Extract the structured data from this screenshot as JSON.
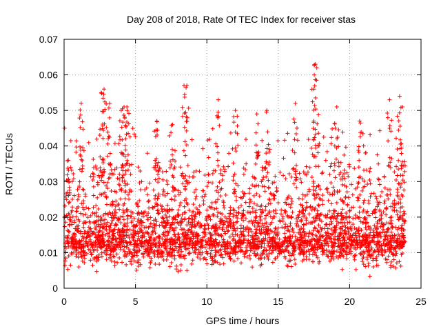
{
  "chart_data": {
    "type": "scatter",
    "title": "Day 208 of 2018, Rate Of TEC Index for receiver stas",
    "xlabel": "GPS time / hours",
    "ylabel": "ROTI / TECUs",
    "xlim": [
      0,
      25
    ],
    "ylim": [
      0,
      0.07
    ],
    "xticks": [
      0,
      5,
      10,
      15,
      20,
      25
    ],
    "xtick_labels": [
      "0",
      "5",
      "10",
      "15",
      "20",
      "25"
    ],
    "yticks": [
      0,
      0.01,
      0.02,
      0.03,
      0.04,
      0.05,
      0.06,
      0.07
    ],
    "ytick_labels": [
      "0",
      "0.01",
      "0.02",
      "0.03",
      "0.04",
      "0.05",
      "0.06",
      "0.07"
    ],
    "grid": true,
    "marker": "+",
    "color": "#ff0000",
    "series": [
      {
        "name": "ROTI",
        "description_values": "dense red + markers across 0-24 h; bulk of points between 0.005 and 0.03, notable peaks",
        "x": [
          0.3,
          1.2,
          2.6,
          2.8,
          3.2,
          4.0,
          4.2,
          4.4,
          6.5,
          7.6,
          8.4,
          8.6,
          10.8,
          12.0,
          13.5,
          14.2,
          16.2,
          17.6,
          17.7,
          17.5,
          19.1,
          20.7,
          22.8,
          23.5,
          23.7
        ],
        "y": [
          0.036,
          0.052,
          0.055,
          0.056,
          0.052,
          0.05,
          0.051,
          0.051,
          0.047,
          0.046,
          0.057,
          0.057,
          0.053,
          0.05,
          0.049,
          0.05,
          0.052,
          0.063,
          0.062,
          0.056,
          0.051,
          0.047,
          0.053,
          0.054,
          0.051
        ]
      }
    ]
  }
}
